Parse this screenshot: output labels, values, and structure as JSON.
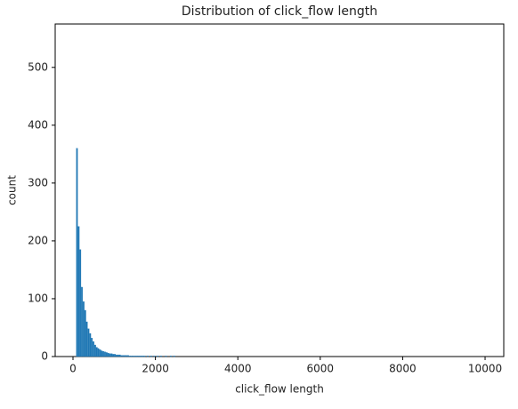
{
  "chart_data": {
    "type": "histogram",
    "title": "Distribution of click_flow length",
    "x_label": "click_flow length",
    "y_label": "count",
    "color": "#1f77b4",
    "bins": [
      80,
      120,
      160,
      200,
      240,
      280,
      320,
      360,
      400,
      440,
      480,
      520,
      560,
      600,
      640,
      680,
      720,
      760,
      800,
      840,
      880,
      920,
      960,
      1000,
      1040,
      1080,
      1120,
      1160,
      1200,
      1240,
      1280,
      1320,
      1360,
      1400,
      1440,
      1480,
      1520,
      1560,
      1600,
      1640,
      1680,
      1720,
      1760,
      1800,
      1840,
      1880,
      1920,
      1960,
      2000,
      2040,
      2080,
      2120,
      2160,
      2200,
      2240,
      2280,
      2320,
      2360,
      2400,
      2440,
      2480
    ],
    "counts": [
      360,
      225,
      185,
      120,
      95,
      80,
      60,
      48,
      40,
      32,
      26,
      20,
      16,
      14,
      12,
      10,
      9,
      8,
      7,
      6,
      5,
      5,
      4,
      4,
      3,
      3,
      3,
      2,
      2,
      2,
      2,
      2,
      1,
      1,
      1,
      1,
      1,
      1,
      1,
      1,
      1,
      1,
      0,
      1,
      0,
      1,
      0,
      1,
      0,
      1,
      0,
      1,
      0,
      0,
      1,
      0,
      0,
      1,
      0,
      1
    ],
    "xlim": [
      -432,
      10453
    ],
    "ylim": [
      0,
      575
    ],
    "xticks": [
      0,
      2000,
      4000,
      6000,
      8000,
      10000
    ],
    "yticks": [
      0,
      100,
      200,
      300,
      400,
      500
    ]
  }
}
